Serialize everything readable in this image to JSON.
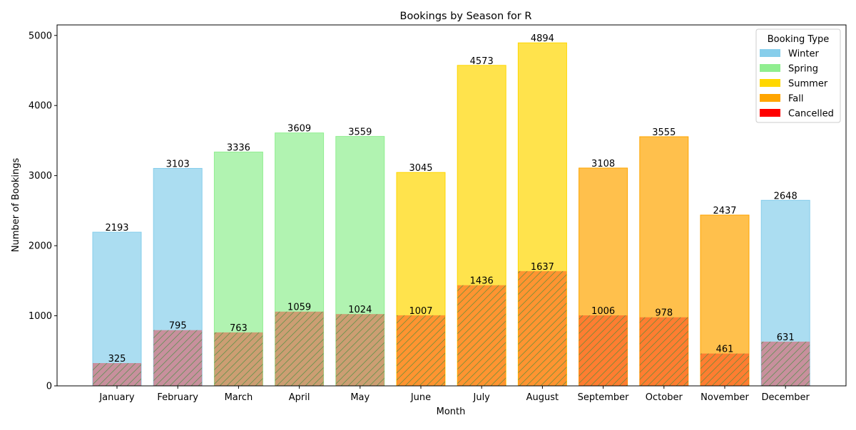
{
  "chart_data": {
    "type": "bar",
    "title": "Bookings by Season for R",
    "xlabel": "Month",
    "ylabel": "Number of Bookings",
    "ylim": [
      0,
      5150
    ],
    "yticks": [
      0,
      1000,
      2000,
      3000,
      4000,
      5000
    ],
    "grid": false,
    "legend_placement": "top-right",
    "legend": {
      "title": "Booking Type",
      "entries": [
        {
          "label": "Winter",
          "color": "#87CEEB"
        },
        {
          "label": "Spring",
          "color": "#90EE90"
        },
        {
          "label": "Summer",
          "color": "#FFD700"
        },
        {
          "label": "Fall",
          "color": "#FFA500"
        },
        {
          "label": "Cancelled",
          "color": "#FF0000"
        }
      ]
    },
    "categories": [
      "January",
      "February",
      "March",
      "April",
      "May",
      "June",
      "July",
      "August",
      "September",
      "October",
      "November",
      "December"
    ],
    "seasons": [
      "Winter",
      "Winter",
      "Spring",
      "Spring",
      "Spring",
      "Summer",
      "Summer",
      "Summer",
      "Fall",
      "Fall",
      "Fall",
      "Winter"
    ],
    "series": [
      {
        "name": "Total",
        "values": [
          2193,
          3103,
          3336,
          3609,
          3559,
          3045,
          4573,
          4894,
          3108,
          3555,
          2437,
          2648
        ]
      },
      {
        "name": "Cancelled",
        "values": [
          325,
          795,
          763,
          1059,
          1024,
          1007,
          1436,
          1637,
          1006,
          978,
          461,
          631
        ]
      }
    ],
    "season_colors": {
      "Winter": "#87CEEB",
      "Spring": "#90EE90",
      "Summer": "#FFD700",
      "Fall": "#FFA500"
    },
    "cancelled_overlay_color": "#FF0000"
  }
}
